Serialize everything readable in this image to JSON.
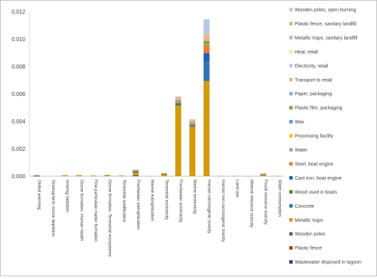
{
  "chart_data": {
    "type": "bar",
    "stacked": true,
    "title": "",
    "xlabel": "",
    "ylabel": "",
    "ylim": [
      0,
      0.012
    ],
    "yticks": [
      "0.000",
      "0.002",
      "0.004",
      "0.006",
      "0.008",
      "0.010",
      "0.012"
    ],
    "grid": false,
    "legend_position": "right",
    "categories": [
      "Global warming",
      "Stratospheric ozone depletion",
      "Ionizing radiation",
      "Ozone formation, Human health",
      "Fine particulate matter formation",
      "Ozone formation, Terrestrial ecosystems",
      "Terrestrial acidification",
      "Freshwater eutrophication",
      "Marine eutrophication",
      "Terrestrial ecotoxicity",
      "Freshwater ecotoxicity",
      "Marine ecotoxicity",
      "Human carcinogenic toxicity",
      "Human non-carcinogenic toxicity",
      "Land use",
      "Mineral resource scarcity",
      "Fossil resource scarcity",
      "Water consumption"
    ],
    "series": [
      {
        "name": "Wastewater disposed in lagoon",
        "color": "#264478",
        "values": [
          1e-05,
          0,
          0,
          0,
          0,
          0,
          0,
          6e-05,
          0,
          0,
          0,
          0,
          0,
          0,
          0,
          0,
          0,
          0
        ]
      },
      {
        "name": "Plastic fence",
        "color": "#9e480e",
        "values": [
          0,
          0,
          0,
          0,
          0,
          0,
          0,
          0,
          0,
          0,
          0,
          0,
          0,
          0,
          0,
          0,
          0,
          0
        ]
      },
      {
        "name": "Wooden poles",
        "color": "#636363",
        "values": [
          0,
          0,
          0,
          0,
          0,
          0,
          0,
          0,
          0,
          0,
          0,
          0,
          0,
          0,
          0,
          0,
          0,
          0
        ]
      },
      {
        "name": "Metallic traps",
        "color": "#d49a08",
        "values": [
          3e-05,
          0,
          5e-05,
          5e-05,
          4e-05,
          5e-05,
          4e-05,
          0.00022,
          1e-05,
          0.00015,
          0.00515,
          0.0036,
          0.00695,
          2e-05,
          2e-05,
          1e-05,
          0.0001,
          2e-05
        ]
      },
      {
        "name": "Concrete",
        "color": "#2e75b6",
        "values": [
          1e-05,
          0,
          0,
          0,
          0,
          0,
          0,
          2e-05,
          0,
          0,
          5e-05,
          4e-05,
          0.0014,
          0,
          0,
          0,
          0,
          0
        ]
      },
      {
        "name": "Wood used in boats",
        "color": "#548235",
        "values": [
          0,
          0,
          0,
          0,
          0,
          0,
          0,
          2e-05,
          0,
          1e-05,
          6e-05,
          5e-05,
          3e-05,
          0,
          0,
          0,
          1e-05,
          0
        ]
      },
      {
        "name": "Cast iron, boat engine",
        "color": "#1f5fb4",
        "values": [
          0,
          0,
          0,
          0,
          0,
          0,
          0,
          4e-05,
          0,
          1e-05,
          6e-05,
          5e-05,
          0.0006,
          0,
          0,
          0,
          0,
          0
        ]
      },
      {
        "name": "Steel, boat engine",
        "color": "#ed7d31",
        "values": [
          1e-05,
          0,
          2e-05,
          2e-05,
          1e-05,
          2e-05,
          1e-05,
          3e-05,
          0,
          2e-05,
          0.0001,
          8e-05,
          0.0006,
          0,
          0,
          0,
          1e-05,
          0
        ]
      },
      {
        "name": "Water",
        "color": "#a5a5a5",
        "values": [
          0,
          0,
          0,
          0,
          0,
          0,
          0,
          1e-05,
          0,
          0,
          2e-05,
          2e-05,
          2e-05,
          0,
          0,
          0,
          0,
          0
        ]
      },
      {
        "name": "Processing facility",
        "color": "#ffc000",
        "values": [
          0,
          0,
          0,
          0,
          0,
          0,
          0,
          1e-05,
          0,
          1e-05,
          2e-05,
          2e-05,
          3e-05,
          0,
          0,
          0,
          0,
          0
        ]
      },
      {
        "name": "Wax",
        "color": "#5b9bd5",
        "values": [
          1e-05,
          0,
          0,
          0,
          0,
          0,
          0,
          1e-05,
          0,
          0,
          2e-05,
          1e-05,
          2e-05,
          0,
          0,
          0,
          2e-05,
          0
        ]
      },
      {
        "name": "Plastic film, packaging",
        "color": "#70ad47",
        "values": [
          1e-05,
          0,
          0,
          0,
          0,
          1e-05,
          0,
          2e-05,
          0,
          1e-05,
          5e-05,
          4e-05,
          0.0002,
          0,
          0,
          0,
          3e-05,
          0
        ]
      },
      {
        "name": "Paper, packaging",
        "color": "#8faadc",
        "values": [
          0,
          0,
          0,
          0,
          0,
          0,
          0,
          1e-05,
          0,
          0,
          2e-05,
          2e-05,
          3e-05,
          0,
          0,
          0,
          1e-05,
          0
        ]
      },
      {
        "name": "Transport to retail",
        "color": "#f4b183",
        "values": [
          1e-05,
          0,
          1e-05,
          2e-05,
          1e-05,
          2e-05,
          1e-05,
          2e-05,
          0,
          2e-05,
          0.0002,
          0.00015,
          0.00045,
          0,
          0,
          0,
          2e-05,
          0
        ]
      },
      {
        "name": "Electricity, retail",
        "color": "#c9c9c9",
        "values": [
          0,
          0,
          0,
          0,
          0,
          0,
          0,
          1e-05,
          0,
          0,
          2e-05,
          2e-05,
          3e-05,
          0,
          0,
          0,
          0,
          0
        ]
      },
      {
        "name": "Heat, retail",
        "color": "#ffe699",
        "values": [
          0,
          0,
          0,
          0,
          0,
          0,
          0,
          0,
          0,
          0,
          1e-05,
          1e-05,
          2e-05,
          0,
          0,
          0,
          0,
          0
        ]
      },
      {
        "name": "Metallic traps, sanitary landfill",
        "color": "#9dc3e6",
        "values": [
          0,
          0,
          0,
          0,
          0,
          0,
          0,
          0,
          0,
          0,
          1e-05,
          1e-05,
          2e-05,
          0,
          0,
          0,
          0,
          0
        ]
      },
      {
        "name": "Plastic fence, sanitary landfill",
        "color": "#a9d18e",
        "values": [
          0,
          0,
          0,
          0,
          0,
          0,
          0,
          0,
          0,
          0,
          1e-05,
          1e-05,
          2e-05,
          0,
          0,
          0,
          0,
          0
        ]
      },
      {
        "name": "Wooden poles, open burning",
        "color": "#b4c7e7",
        "values": [
          0,
          0,
          0,
          0,
          0,
          0,
          0,
          0,
          0,
          0,
          2e-05,
          2e-05,
          0.00102,
          0,
          0,
          0,
          0,
          0
        ]
      }
    ]
  }
}
